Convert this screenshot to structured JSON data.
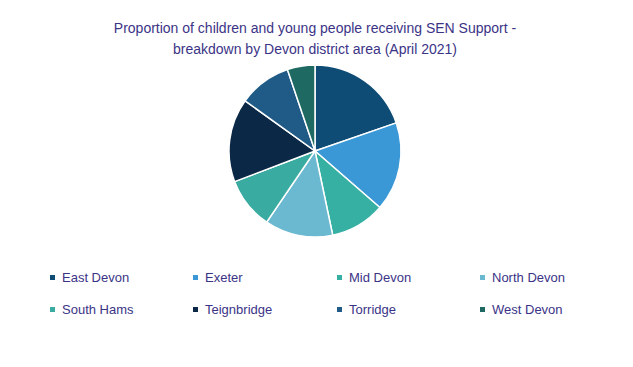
{
  "chart_data": {
    "type": "pie",
    "title": "Proportion of children and young people receiving SEN Support - breakdown by Devon district area (April 2021)",
    "categories": [
      "East Devon",
      "Exeter",
      "Mid Devon",
      "North Devon",
      "South Hams",
      "Teignbridge",
      "Torridge",
      "West Devon"
    ],
    "values": [
      19.7,
      16.7,
      10.3,
      12.8,
      9.7,
      15.7,
      9.9,
      5.2
    ],
    "colors": [
      "#0f4c75",
      "#3a98d6",
      "#36b0a3",
      "#6bb8d1",
      "#3aaba0",
      "#0b2946",
      "#1f5b86",
      "#1e6a62"
    ],
    "legend": "bottom"
  }
}
